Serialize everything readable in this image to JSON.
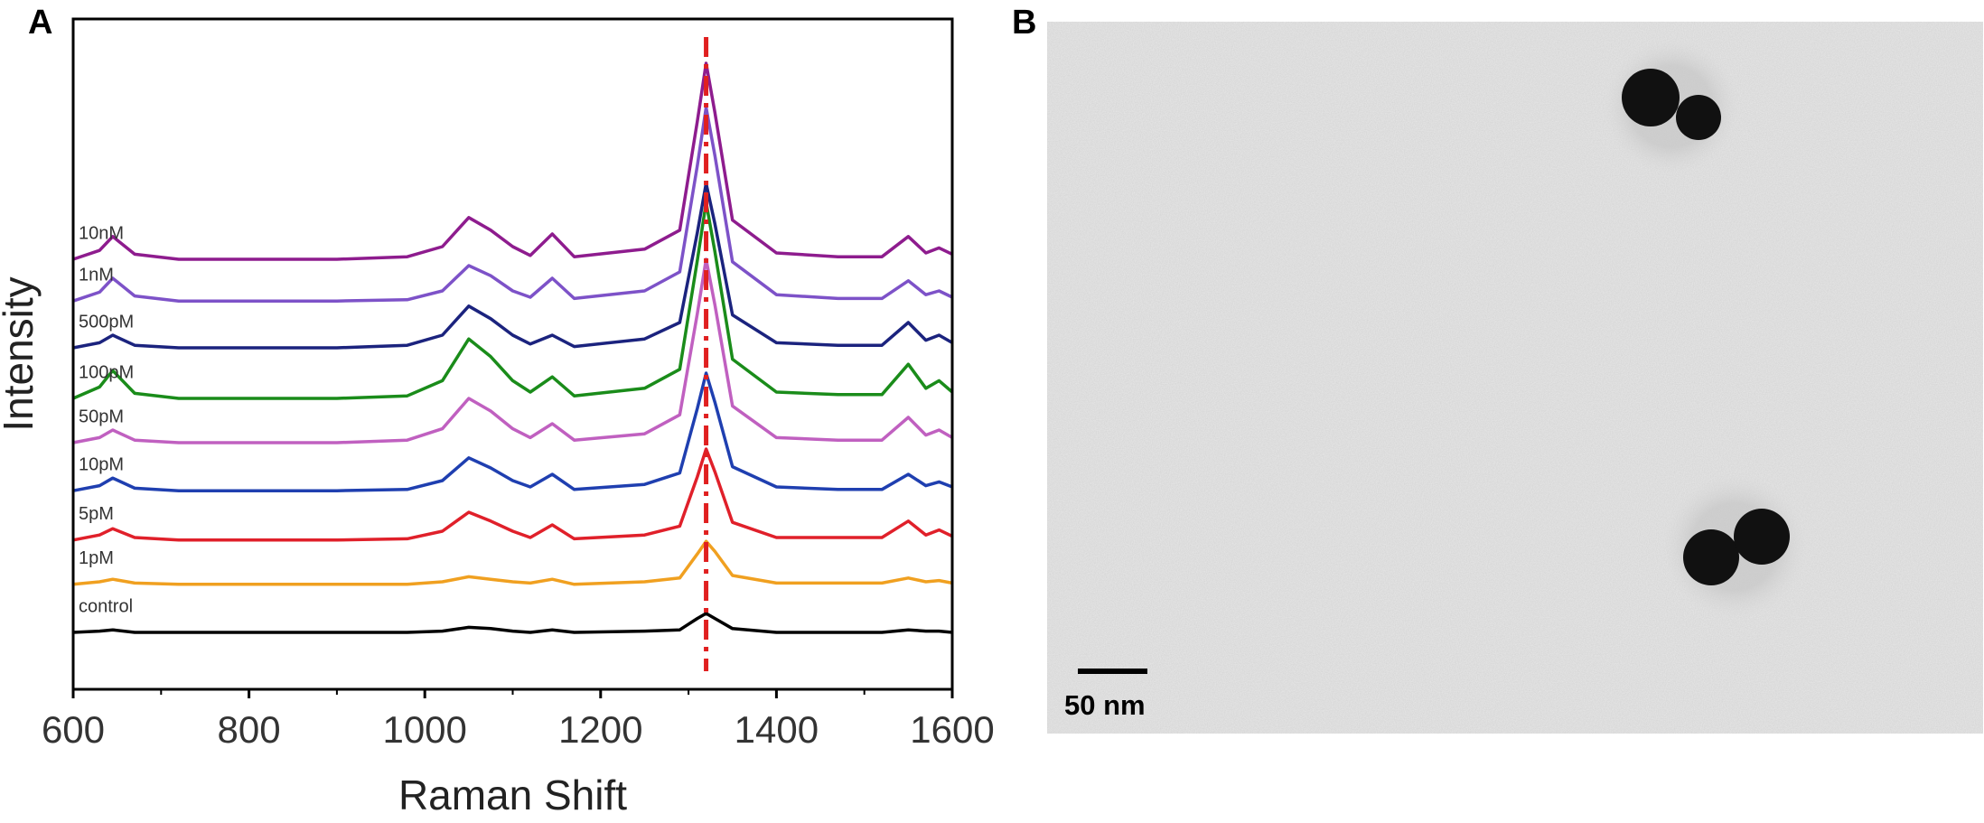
{
  "panel_labels": [
    "A",
    "B"
  ],
  "image": {
    "scale_bar_label": "50 nm"
  },
  "chart_data": {
    "type": "line",
    "xlabel": "Raman Shift",
    "ylabel": "Intensity",
    "xlim": [
      600,
      1600
    ],
    "ylim": [
      0,
      530
    ],
    "xticks": [
      600,
      800,
      1000,
      1200,
      1400,
      1600
    ],
    "xminorticks": [
      700,
      900,
      1100,
      1300,
      1500
    ],
    "reference_line": {
      "x": 1320,
      "color": "#e02020"
    },
    "x": [
      600,
      630,
      645,
      670,
      720,
      800,
      900,
      980,
      1020,
      1050,
      1075,
      1100,
      1120,
      1145,
      1170,
      1250,
      1290,
      1310,
      1320,
      1330,
      1350,
      1400,
      1470,
      1520,
      1550,
      1570,
      1585,
      1600
    ],
    "series": [
      {
        "name": "10nM",
        "color": "#8e1c8e",
        "values": [
          340,
          347,
          358,
          344,
          340,
          340,
          340,
          342,
          350,
          373,
          363,
          350,
          343,
          360,
          342,
          348,
          363,
          449,
          495,
          456,
          371,
          345,
          342,
          342,
          358,
          345,
          349,
          344
        ]
      },
      {
        "name": "1nM",
        "color": "#7d52c8",
        "values": [
          307,
          314,
          325,
          311,
          307,
          307,
          307,
          308,
          315,
          335,
          327,
          315,
          310,
          325,
          309,
          315,
          330,
          414,
          460,
          422,
          338,
          312,
          309,
          309,
          323,
          312,
          315,
          310
        ]
      },
      {
        "name": "500pM",
        "color": "#1b237e",
        "values": [
          270,
          274,
          280,
          272,
          270,
          270,
          270,
          272,
          280,
          303,
          293,
          280,
          273,
          280,
          271,
          277,
          290,
          361,
          400,
          368,
          296,
          274,
          272,
          272,
          290,
          276,
          280,
          274
        ]
      },
      {
        "name": "100pM",
        "color": "#1a8c1a",
        "values": [
          230,
          239,
          252,
          234,
          230,
          230,
          230,
          232,
          244,
          277,
          263,
          244,
          235,
          247,
          232,
          238,
          253,
          339,
          385,
          346,
          261,
          235,
          233,
          233,
          257,
          238,
          244,
          235
        ]
      },
      {
        "name": "50pM",
        "color": "#c060c0",
        "values": [
          195,
          199,
          205,
          197,
          195,
          195,
          195,
          197,
          206,
          230,
          220,
          206,
          199,
          210,
          197,
          202,
          217,
          297,
          340,
          304,
          224,
          199,
          197,
          197,
          215,
          201,
          205,
          199
        ]
      },
      {
        "name": "10pM",
        "color": "#1f3fb0",
        "values": [
          157,
          161,
          167,
          159,
          157,
          157,
          157,
          158,
          165,
          183,
          175,
          165,
          160,
          170,
          158,
          162,
          171,
          222,
          250,
          227,
          176,
          160,
          158,
          158,
          170,
          161,
          164,
          160
        ]
      },
      {
        "name": "5pM",
        "color": "#e0202a",
        "values": [
          118,
          122,
          127,
          120,
          118,
          118,
          118,
          119,
          125,
          140,
          133,
          125,
          120,
          130,
          119,
          122,
          129,
          168,
          190,
          172,
          132,
          120,
          120,
          120,
          133,
          122,
          126,
          121
        ]
      },
      {
        "name": "1pM",
        "color": "#f0a020",
        "values": [
          83,
          85,
          87,
          84,
          83,
          83,
          83,
          83,
          85,
          89,
          87,
          85,
          84,
          87,
          83,
          85,
          88,
          107,
          117,
          109,
          90,
          84,
          84,
          84,
          88,
          85,
          86,
          84
        ]
      },
      {
        "name": "control",
        "color": "#000000",
        "values": [
          45,
          46,
          47,
          45,
          45,
          45,
          45,
          45,
          46,
          49,
          48,
          46,
          45,
          47,
          45,
          46,
          47,
          56,
          60,
          56,
          48,
          45,
          45,
          45,
          47,
          46,
          46,
          45
        ]
      }
    ]
  }
}
